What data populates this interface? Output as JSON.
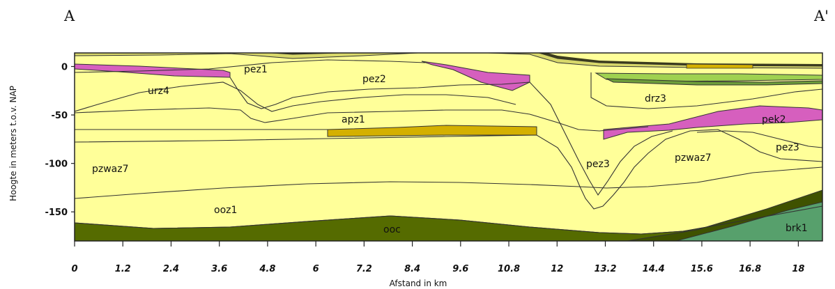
{
  "end_labels": {
    "left": "A",
    "right": "A'"
  },
  "axes": {
    "x_label": "Afstand in km",
    "y_label": "Hoogte in meters t.o.v. NAP",
    "x_ticks": [
      "0",
      "1.2",
      "2.4",
      "3.6",
      "4.8",
      "6",
      "7.2",
      "8.4",
      "9.6",
      "10.8",
      "12",
      "13.2",
      "14.4",
      "15.6",
      "16.8",
      "18"
    ],
    "y_ticks": [
      "0",
      "-50",
      "-100",
      "-150"
    ],
    "x_range_km": [
      0,
      18.6
    ],
    "y_range_m": [
      -180,
      14
    ]
  },
  "units": {
    "pez1": "pez1",
    "pez2": "pez2",
    "urz4": "urz4",
    "drz3": "drz3",
    "apz1": "apz1",
    "pek2": "pek2",
    "pzwaz7_left": "pzwaz7",
    "pzwaz7_right": "pzwaz7",
    "pez3_center": "pez3",
    "pez3_right": "pez3",
    "ooz1": "ooz1",
    "ooc": "ooc",
    "brk1": "brk1"
  },
  "colors": {
    "sand": "#ffff99",
    "ooc": "#556b00",
    "olive_dark": "#3f5200",
    "brk1": "#57a06c",
    "pink": "#d65fbe",
    "ochre": "#d4b000",
    "orange": "#e87030",
    "green_light": "#9fd150",
    "outline": "#333333"
  }
}
